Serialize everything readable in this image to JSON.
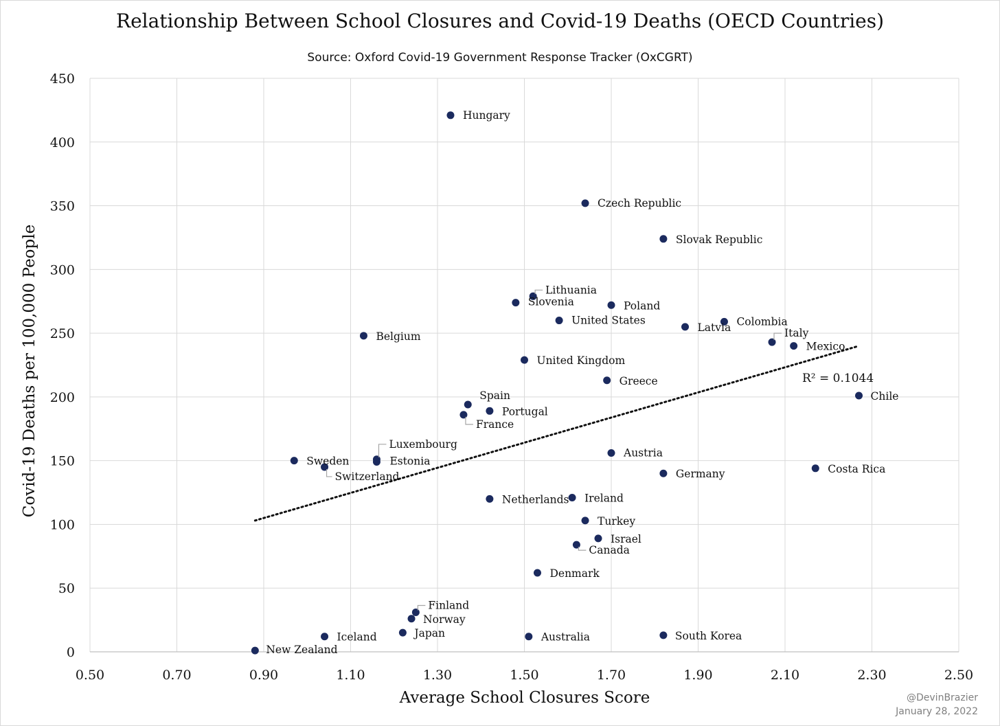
{
  "header": {
    "title": "Relationship Between School Closures and Covid-19 Deaths (OECD Countries)",
    "subtitle": "Source: Oxford Covid-19 Government Response Tracker (OxCGRT)"
  },
  "footer": {
    "handle": "@DevinBrazier",
    "date": "January 28, 2022"
  },
  "colors": {
    "point": "#1b2a5e",
    "grid": "#d9d9d9",
    "trendline": "#111111",
    "leader": "#a6a6a6"
  },
  "chart_data": {
    "type": "scatter",
    "title": "Relationship Between School Closures and Covid-19 Deaths (OECD Countries)",
    "xlabel": "Average School Closures Score",
    "ylabel": "Covid-19 Deaths per 100,000 People",
    "xlim": [
      0.5,
      2.5
    ],
    "ylim": [
      0,
      450
    ],
    "xticks": [
      "0.50",
      "0.70",
      "0.90",
      "1.10",
      "1.30",
      "1.50",
      "1.70",
      "1.90",
      "2.10",
      "2.30",
      "2.50"
    ],
    "yticks": [
      "0",
      "50",
      "100",
      "150",
      "200",
      "250",
      "300",
      "350",
      "400",
      "450"
    ],
    "grid": true,
    "legend": "none",
    "trendline": {
      "type": "linear",
      "x": [
        0.88,
        2.27
      ],
      "y": [
        103,
        240
      ],
      "style": "dotted",
      "label": "R² = 0.1044"
    },
    "points": [
      {
        "label": "Hungary",
        "x": 1.33,
        "y": 421
      },
      {
        "label": "Czech Republic",
        "x": 1.64,
        "y": 352
      },
      {
        "label": "Slovak Republic",
        "x": 1.82,
        "y": 324
      },
      {
        "label": "Lithuania",
        "x": 1.52,
        "y": 279
      },
      {
        "label": "Slovenia",
        "x": 1.48,
        "y": 274
      },
      {
        "label": "Poland",
        "x": 1.7,
        "y": 272
      },
      {
        "label": "United States",
        "x": 1.58,
        "y": 260
      },
      {
        "label": "Latvia",
        "x": 1.87,
        "y": 255
      },
      {
        "label": "Colombia",
        "x": 1.96,
        "y": 259
      },
      {
        "label": "Italy",
        "x": 2.07,
        "y": 243
      },
      {
        "label": "Mexico",
        "x": 2.12,
        "y": 240
      },
      {
        "label": "Belgium",
        "x": 1.13,
        "y": 248
      },
      {
        "label": "United Kingdom",
        "x": 1.5,
        "y": 229
      },
      {
        "label": "Greece",
        "x": 1.69,
        "y": 213
      },
      {
        "label": "Chile",
        "x": 2.27,
        "y": 201
      },
      {
        "label": "Spain",
        "x": 1.37,
        "y": 194
      },
      {
        "label": "Portugal",
        "x": 1.42,
        "y": 189
      },
      {
        "label": "France",
        "x": 1.36,
        "y": 186
      },
      {
        "label": "Luxembourg",
        "x": 1.16,
        "y": 151
      },
      {
        "label": "Estonia",
        "x": 1.16,
        "y": 149
      },
      {
        "label": "Sweden",
        "x": 0.97,
        "y": 150
      },
      {
        "label": "Switzerland",
        "x": 1.04,
        "y": 145
      },
      {
        "label": "Austria",
        "x": 1.7,
        "y": 156
      },
      {
        "label": "Germany",
        "x": 1.82,
        "y": 140
      },
      {
        "label": "Costa Rica",
        "x": 2.17,
        "y": 144
      },
      {
        "label": "Netherlands",
        "x": 1.42,
        "y": 120
      },
      {
        "label": "Ireland",
        "x": 1.61,
        "y": 121
      },
      {
        "label": "Turkey",
        "x": 1.64,
        "y": 103
      },
      {
        "label": "Israel",
        "x": 1.67,
        "y": 89
      },
      {
        "label": "Canada",
        "x": 1.62,
        "y": 84
      },
      {
        "label": "Denmark",
        "x": 1.53,
        "y": 62
      },
      {
        "label": "Finland",
        "x": 1.25,
        "y": 31
      },
      {
        "label": "Norway",
        "x": 1.24,
        "y": 26
      },
      {
        "label": "Japan",
        "x": 1.22,
        "y": 15
      },
      {
        "label": "Iceland",
        "x": 1.04,
        "y": 12
      },
      {
        "label": "Australia",
        "x": 1.51,
        "y": 12
      },
      {
        "label": "South Korea",
        "x": 1.82,
        "y": 13
      },
      {
        "label": "New Zealand",
        "x": 0.88,
        "y": 1
      }
    ]
  }
}
